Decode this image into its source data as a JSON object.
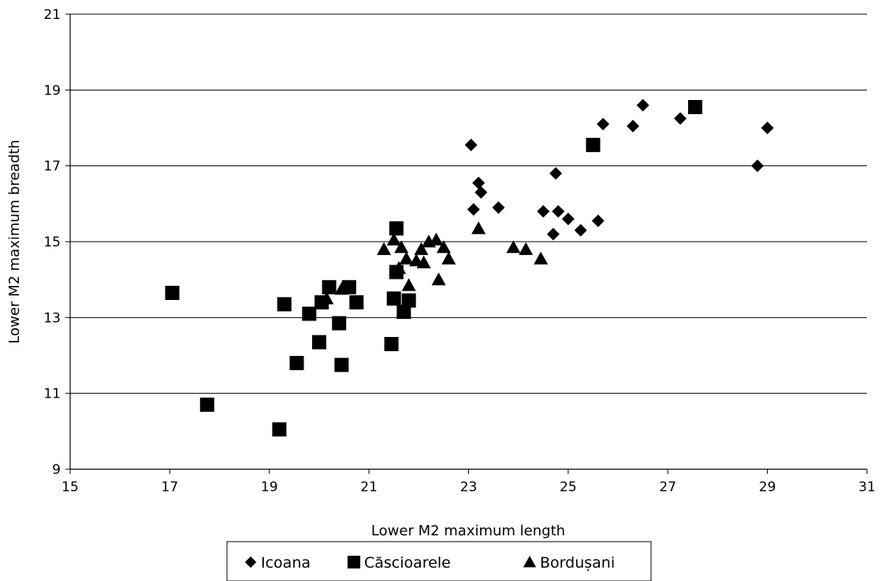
{
  "chart_data": {
    "type": "scatter",
    "title": "",
    "xlabel": "Lower M2 maximum length",
    "ylabel": "Lower M2 maximum breadth",
    "xlim": [
      15,
      31
    ],
    "ylim": [
      9,
      21
    ],
    "x_ticks": [
      "15",
      "17",
      "19",
      "21",
      "23",
      "25",
      "27",
      "29",
      "31"
    ],
    "y_ticks": [
      "9",
      "11",
      "13",
      "15",
      "17",
      "19",
      "21"
    ],
    "grid": "horizontal major gridlines",
    "legend_position": "bottom",
    "series": [
      {
        "name": "Icoana",
        "marker": "diamond",
        "color": "#000000",
        "points": [
          [
            23.05,
            17.55
          ],
          [
            23.2,
            16.55
          ],
          [
            23.25,
            16.3
          ],
          [
            23.1,
            15.85
          ],
          [
            23.6,
            15.9
          ],
          [
            24.75,
            16.8
          ],
          [
            24.5,
            15.8
          ],
          [
            24.8,
            15.8
          ],
          [
            25.0,
            15.6
          ],
          [
            24.7,
            15.2
          ],
          [
            25.25,
            15.3
          ],
          [
            25.6,
            15.55
          ],
          [
            25.7,
            18.1
          ],
          [
            26.3,
            18.05
          ],
          [
            26.5,
            18.6
          ],
          [
            27.25,
            18.25
          ],
          [
            28.8,
            17.0
          ],
          [
            29.0,
            18.0
          ]
        ]
      },
      {
        "name": "Căscioarele",
        "marker": "square",
        "color": "#000000",
        "points": [
          [
            17.05,
            13.65
          ],
          [
            17.75,
            10.7
          ],
          [
            19.2,
            10.05
          ],
          [
            19.3,
            13.35
          ],
          [
            19.55,
            11.8
          ],
          [
            19.8,
            13.1
          ],
          [
            20.0,
            12.35
          ],
          [
            20.05,
            13.4
          ],
          [
            20.2,
            13.8
          ],
          [
            20.4,
            12.85
          ],
          [
            20.45,
            11.75
          ],
          [
            20.6,
            13.8
          ],
          [
            20.75,
            13.4
          ],
          [
            21.45,
            12.3
          ],
          [
            21.5,
            13.5
          ],
          [
            21.55,
            14.2
          ],
          [
            21.55,
            15.35
          ],
          [
            21.7,
            13.15
          ],
          [
            21.8,
            13.45
          ],
          [
            25.5,
            17.55
          ],
          [
            27.55,
            18.55
          ]
        ]
      },
      {
        "name": "Bordușani",
        "marker": "triangle",
        "color": "#000000",
        "points": [
          [
            20.15,
            13.5
          ],
          [
            20.45,
            13.75
          ],
          [
            21.3,
            14.8
          ],
          [
            21.5,
            15.05
          ],
          [
            21.6,
            14.3
          ],
          [
            21.65,
            14.85
          ],
          [
            21.75,
            14.55
          ],
          [
            21.8,
            13.85
          ],
          [
            21.95,
            14.5
          ],
          [
            22.05,
            14.8
          ],
          [
            22.1,
            14.45
          ],
          [
            22.2,
            15.0
          ],
          [
            22.35,
            15.05
          ],
          [
            22.4,
            14.0
          ],
          [
            22.5,
            14.85
          ],
          [
            22.6,
            14.55
          ],
          [
            23.2,
            15.35
          ],
          [
            23.9,
            14.85
          ],
          [
            24.15,
            14.8
          ],
          [
            24.45,
            14.55
          ]
        ]
      }
    ]
  }
}
